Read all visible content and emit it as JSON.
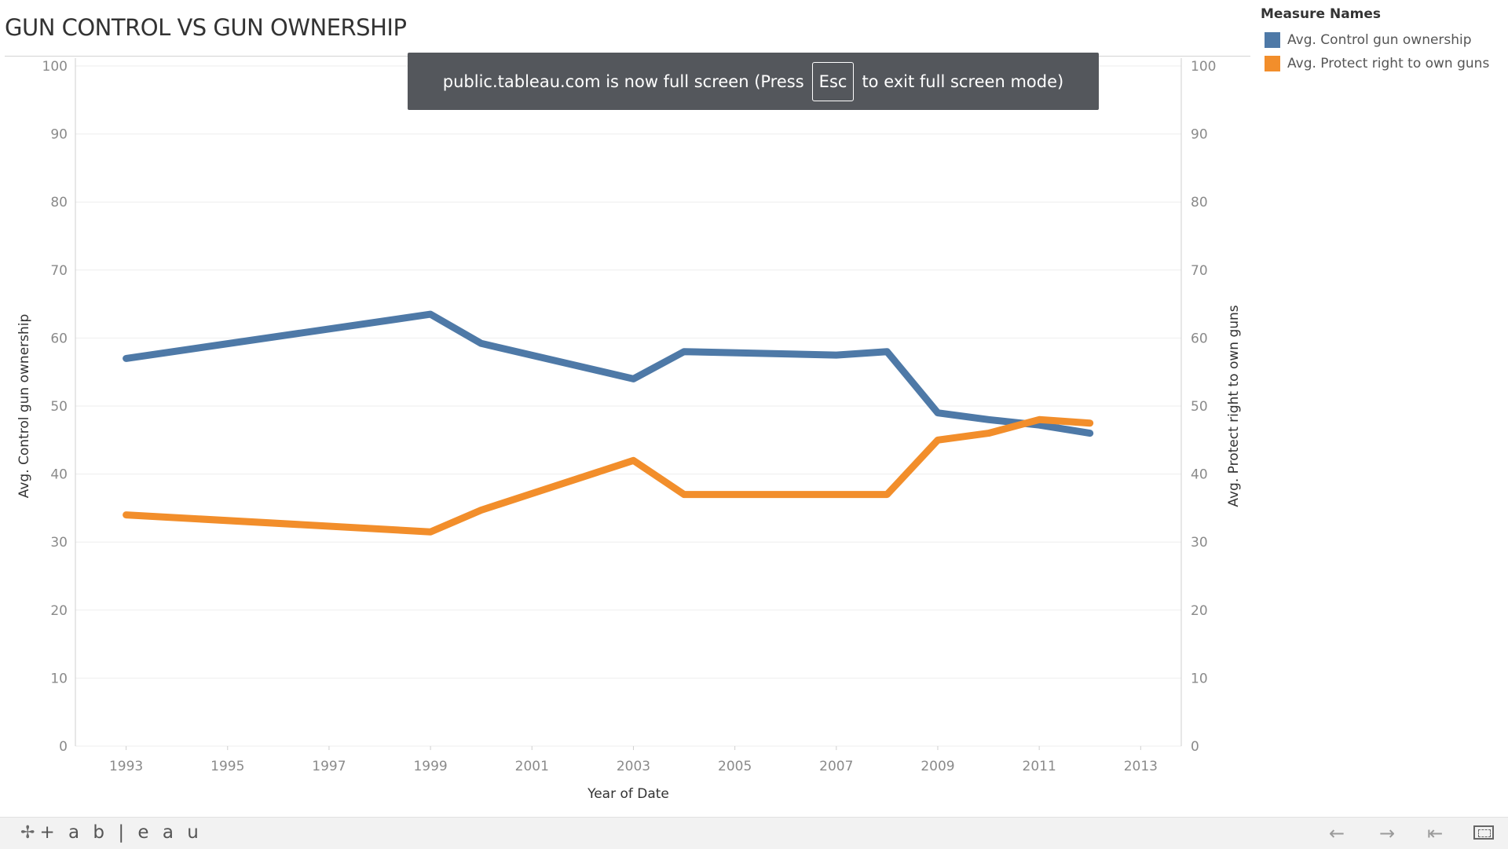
{
  "page": {
    "title": "GUN CONTROL VS GUN OWNERSHIP"
  },
  "banner": {
    "text_before": "public.tableau.com is now full screen (Press",
    "key_label": "Esc",
    "text_after": "to exit full screen mode)"
  },
  "legend": {
    "title": "Measure Names",
    "items": [
      {
        "label": "Avg. Control gun ownership",
        "color": "#4e79a7"
      },
      {
        "label": "Avg. Protect right to own guns",
        "color": "#f28e2b"
      }
    ]
  },
  "footer": {
    "logo_text": "+ a b | e a u",
    "logo_icon": "tableau-logo-icon",
    "back_icon": "arrow-left-icon",
    "forward_icon": "arrow-right-icon",
    "first_icon": "arrow-to-first-icon",
    "fullscreen_icon": "fullscreen-icon"
  },
  "chart_data": {
    "type": "line",
    "title": "GUN CONTROL VS GUN OWNERSHIP",
    "xlabel": "Year of Date",
    "ylabel_left": "Avg. Control gun ownership",
    "ylabel_right": "Avg. Protect right to own guns",
    "xlim": [
      1992,
      2013.8
    ],
    "ylim": [
      0,
      100
    ],
    "x_ticks": [
      "1993",
      "1995",
      "1997",
      "1999",
      "2001",
      "2003",
      "2005",
      "2007",
      "2009",
      "2011",
      "2013"
    ],
    "y_ticks": [
      "0",
      "10",
      "20",
      "30",
      "40",
      "50",
      "60",
      "70",
      "80",
      "90",
      "100"
    ],
    "grid": "horizontal",
    "legend_position": "top-right",
    "series": [
      {
        "name": "Avg. Control gun ownership",
        "color": "#4e79a7",
        "x": [
          1993,
          1999,
          2000,
          2003,
          2004,
          2007,
          2008,
          2009,
          2010,
          2011,
          2012
        ],
        "y": [
          57,
          63.5,
          59.2,
          54,
          58,
          57.5,
          58,
          49,
          48,
          47.2,
          46
        ]
      },
      {
        "name": "Avg. Protect right to own guns",
        "color": "#f28e2b",
        "x": [
          1993,
          1999,
          2000,
          2003,
          2004,
          2007,
          2008,
          2009,
          2010,
          2011,
          2012
        ],
        "y": [
          34,
          31.5,
          34.7,
          42,
          37,
          37,
          37,
          45,
          46,
          48,
          47.5
        ]
      }
    ]
  }
}
